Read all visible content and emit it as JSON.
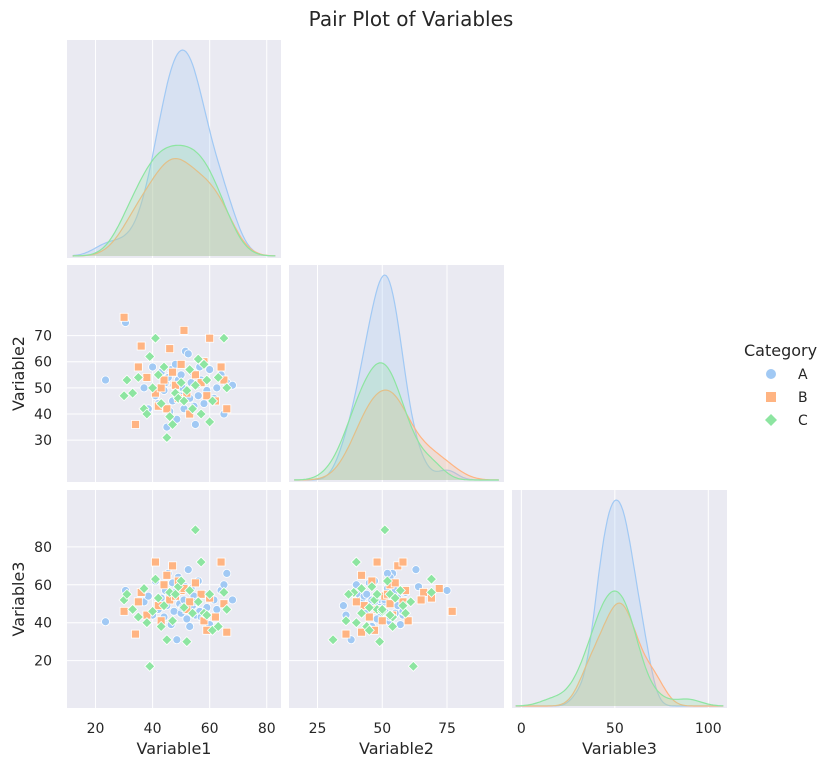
{
  "chart_data": {
    "type": "scatter",
    "title": "Pair Plot of Variables",
    "variables": [
      "Variable1",
      "Variable2",
      "Variable3"
    ],
    "grid": true,
    "layout": "corner pair plot (lower triangle scatter, diagonal KDE)",
    "ranges": {
      "Variable1": [
        10,
        85
      ],
      "Variable2": [
        14,
        97
      ],
      "Variable3": [
        -5,
        110
      ]
    },
    "ticks": {
      "Variable1": [
        20,
        40,
        60,
        80
      ],
      "Variable2": [
        30,
        40,
        50,
        60,
        70
      ],
      "Variable2_x": [
        25,
        50,
        75
      ],
      "Variable3": [
        20,
        40,
        60,
        80
      ],
      "Variable3_x": [
        0,
        50,
        100
      ]
    },
    "legend": {
      "title": "Category",
      "placement": "right",
      "entries": [
        {
          "name": "A",
          "color": "#a1c9f4",
          "marker": "circle"
        },
        {
          "name": "B",
          "color": "#ffb482",
          "marker": "square"
        },
        {
          "name": "C",
          "color": "#8de5a1",
          "marker": "diamond"
        }
      ]
    },
    "kde_peaks": {
      "Variable1": {
        "A": 50,
        "B": 48,
        "C": 48
      },
      "Variable2": {
        "A": 55,
        "B": 52,
        "C": 50
      },
      "Variable3": {
        "A": 55,
        "B": 51,
        "C": 47
      }
    },
    "series": [
      {
        "name": "A",
        "points": [
          [
            23.5,
            53,
            40.5
          ],
          [
            30.5,
            75,
            57
          ],
          [
            37,
            50,
            51
          ],
          [
            38.5,
            42,
            54
          ],
          [
            40,
            58,
            44
          ],
          [
            41,
            47,
            62
          ],
          [
            42,
            44,
            47
          ],
          [
            43,
            56,
            53
          ],
          [
            44,
            49,
            43
          ],
          [
            44.5,
            52,
            57
          ],
          [
            45,
            35,
            49
          ],
          [
            45.5,
            54,
            66
          ],
          [
            46,
            41,
            55
          ],
          [
            46.5,
            57,
            39
          ],
          [
            47,
            45,
            61
          ],
          [
            47.5,
            51,
            46
          ],
          [
            48,
            59,
            56
          ],
          [
            48.5,
            38,
            31
          ],
          [
            49,
            53,
            64
          ],
          [
            49.5,
            47,
            50
          ],
          [
            50,
            55,
            45
          ],
          [
            50.5,
            50,
            48
          ],
          [
            51,
            42,
            52
          ],
          [
            51.5,
            64,
            59
          ],
          [
            52,
            48,
            42
          ],
          [
            52.5,
            63,
            68
          ],
          [
            53,
            46,
            38
          ],
          [
            53.5,
            52,
            58
          ],
          [
            54,
            56,
            49
          ],
          [
            54.5,
            43,
            54
          ],
          [
            55,
            36,
            44
          ],
          [
            55.5,
            51,
            51
          ],
          [
            56,
            47,
            62
          ],
          [
            56.5,
            58,
            46
          ],
          [
            57,
            53,
            43
          ],
          [
            58,
            44,
            55
          ],
          [
            59,
            49,
            48
          ],
          [
            60,
            57,
            39
          ],
          [
            61.5,
            46,
            52
          ],
          [
            62.5,
            50,
            47
          ],
          [
            64,
            55,
            57
          ],
          [
            65,
            40,
            60
          ],
          [
            66,
            52,
            66
          ],
          [
            68,
            51,
            52
          ]
        ]
      },
      {
        "name": "B",
        "points": [
          [
            30,
            77,
            46
          ],
          [
            34,
            36,
            34
          ],
          [
            35,
            58,
            51
          ],
          [
            36,
            66,
            56
          ],
          [
            38,
            54,
            44
          ],
          [
            41,
            48,
            72
          ],
          [
            42,
            43,
            49
          ],
          [
            43,
            50,
            41
          ],
          [
            44,
            53,
            60
          ],
          [
            45,
            42,
            65
          ],
          [
            46,
            65,
            52
          ],
          [
            47,
            56,
            70
          ],
          [
            48,
            51,
            54
          ],
          [
            49,
            46,
            62
          ],
          [
            50,
            59,
            57
          ],
          [
            51,
            72,
            58
          ],
          [
            52,
            48,
            47
          ],
          [
            53,
            40,
            51
          ],
          [
            55,
            55,
            61
          ],
          [
            57,
            52,
            55
          ],
          [
            58,
            60,
            41
          ],
          [
            59,
            47,
            36
          ],
          [
            60,
            69,
            53
          ],
          [
            62,
            45,
            43
          ],
          [
            64,
            58,
            72
          ],
          [
            65,
            53,
            50
          ],
          [
            66,
            42,
            35
          ]
        ]
      },
      {
        "name": "C",
        "points": [
          [
            30,
            47,
            52
          ],
          [
            31,
            53,
            55
          ],
          [
            33,
            48,
            47
          ],
          [
            35,
            54,
            43
          ],
          [
            37,
            42,
            58
          ],
          [
            38,
            40,
            40
          ],
          [
            39,
            62,
            17
          ],
          [
            40,
            50,
            46
          ],
          [
            41,
            69,
            63
          ],
          [
            42,
            55,
            53
          ],
          [
            43,
            44,
            38
          ],
          [
            44,
            58,
            49
          ],
          [
            45,
            31,
            31
          ],
          [
            46,
            39,
            56
          ],
          [
            47,
            36,
            41
          ],
          [
            48,
            48,
            55
          ],
          [
            49,
            46,
            59
          ],
          [
            50,
            52,
            62
          ],
          [
            51,
            45,
            48
          ],
          [
            52,
            49,
            30
          ],
          [
            53,
            57,
            57
          ],
          [
            54,
            42,
            45
          ],
          [
            55,
            51,
            89
          ],
          [
            56,
            61,
            51
          ],
          [
            57,
            40,
            72
          ],
          [
            58,
            59,
            45
          ],
          [
            59,
            53,
            44
          ],
          [
            60,
            37,
            55
          ],
          [
            61,
            45,
            36
          ],
          [
            63,
            54,
            38
          ],
          [
            65,
            69,
            56
          ],
          [
            66,
            50,
            47
          ]
        ]
      }
    ]
  }
}
